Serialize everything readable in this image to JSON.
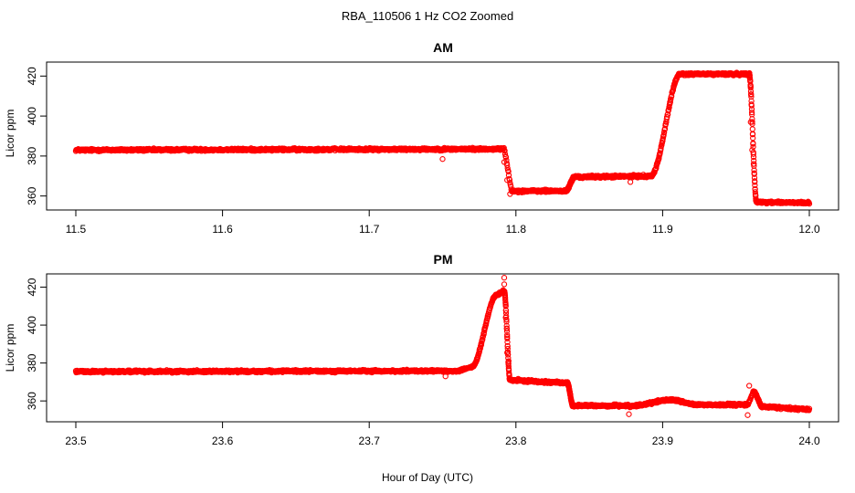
{
  "figure": {
    "title": "RBA_110506  1 Hz CO2 Zoomed",
    "xlabel": "Hour of Day (UTC)"
  },
  "colors": {
    "points": "#ff0000",
    "axes": "#000000",
    "background": "#ffffff"
  },
  "chart_data": [
    {
      "type": "scatter",
      "title": "AM",
      "xlabel": "",
      "ylabel": "Licor ppm",
      "xlim": [
        11.5,
        12.0
      ],
      "ylim": [
        353,
        427
      ],
      "xticks": [
        "11.5",
        "11.6",
        "11.7",
        "11.8",
        "11.9",
        "12.0"
      ],
      "yticks": [
        "360",
        "380",
        "400",
        "420"
      ],
      "grid": false,
      "segments": [
        {
          "x0": 11.5,
          "x1": 11.79,
          "y0": 383.0,
          "y1": 383.5,
          "shape": "linear"
        },
        {
          "x0": 11.79,
          "x1": 11.792,
          "y0": 383.5,
          "y1": 384.0,
          "shape": "linear"
        },
        {
          "x0": 11.792,
          "x1": 11.797,
          "y0": 384.0,
          "y1": 362.5,
          "shape": "linear"
        },
        {
          "x0": 11.797,
          "x1": 11.834,
          "y0": 362.5,
          "y1": 362.5,
          "shape": "linear"
        },
        {
          "x0": 11.834,
          "x1": 11.84,
          "y0": 362.5,
          "y1": 369.5,
          "shape": "sigmoid"
        },
        {
          "x0": 11.84,
          "x1": 11.892,
          "y0": 369.5,
          "y1": 370.0,
          "shape": "linear"
        },
        {
          "x0": 11.892,
          "x1": 11.912,
          "y0": 370.0,
          "y1": 421.0,
          "shape": "sigmoid"
        },
        {
          "x0": 11.912,
          "x1": 11.959,
          "y0": 421.0,
          "y1": 421.0,
          "shape": "linear"
        },
        {
          "x0": 11.959,
          "x1": 11.964,
          "y0": 421.0,
          "y1": 357.0,
          "shape": "sigmoid"
        },
        {
          "x0": 11.964,
          "x1": 12.0,
          "y0": 357.0,
          "y1": 356.5,
          "shape": "linear"
        }
      ],
      "outliers": [
        {
          "x": 11.75,
          "y": 378.5
        },
        {
          "x": 11.878,
          "y": 367.0
        },
        {
          "x": 11.792,
          "y": 377.0
        },
        {
          "x": 11.794,
          "y": 368.0
        },
        {
          "x": 11.796,
          "y": 361.0
        },
        {
          "x": 11.96,
          "y": 397.0
        },
        {
          "x": 11.961,
          "y": 383.0
        },
        {
          "x": 11.962,
          "y": 376.0
        },
        {
          "x": 11.96,
          "y": 415.0
        }
      ]
    },
    {
      "type": "scatter",
      "title": "PM",
      "xlabel": "",
      "ylabel": "Licor ppm",
      "xlim": [
        23.5,
        24.0
      ],
      "ylim": [
        349,
        427
      ],
      "xticks": [
        "23.5",
        "23.6",
        "23.7",
        "23.8",
        "23.9",
        "24.0"
      ],
      "yticks": [
        "360",
        "380",
        "400",
        "420"
      ],
      "grid": false,
      "segments": [
        {
          "x0": 23.5,
          "x1": 23.76,
          "y0": 375.5,
          "y1": 375.8,
          "shape": "linear"
        },
        {
          "x0": 23.76,
          "x1": 23.77,
          "y0": 375.8,
          "y1": 378.0,
          "shape": "linear"
        },
        {
          "x0": 23.77,
          "x1": 23.787,
          "y0": 378.0,
          "y1": 416.0,
          "shape": "sigmoid"
        },
        {
          "x0": 23.787,
          "x1": 23.792,
          "y0": 416.0,
          "y1": 418.0,
          "shape": "linear"
        },
        {
          "x0": 23.792,
          "x1": 23.796,
          "y0": 418.0,
          "y1": 371.0,
          "shape": "sigmoid"
        },
        {
          "x0": 23.796,
          "x1": 23.835,
          "y0": 371.0,
          "y1": 369.5,
          "shape": "linear"
        },
        {
          "x0": 23.835,
          "x1": 23.839,
          "y0": 369.5,
          "y1": 357.5,
          "shape": "sigmoid"
        },
        {
          "x0": 23.839,
          "x1": 23.88,
          "y0": 357.5,
          "y1": 357.5,
          "shape": "linear"
        },
        {
          "x0": 23.88,
          "x1": 23.905,
          "y0": 357.5,
          "y1": 360.5,
          "shape": "sigmoid"
        },
        {
          "x0": 23.905,
          "x1": 23.925,
          "y0": 360.5,
          "y1": 358.0,
          "shape": "sigmoid"
        },
        {
          "x0": 23.925,
          "x1": 23.958,
          "y0": 358.0,
          "y1": 358.0,
          "shape": "linear"
        },
        {
          "x0": 23.958,
          "x1": 23.962,
          "y0": 358.0,
          "y1": 365.0,
          "shape": "linear"
        },
        {
          "x0": 23.962,
          "x1": 23.968,
          "y0": 365.0,
          "y1": 357.0,
          "shape": "sigmoid"
        },
        {
          "x0": 23.968,
          "x1": 24.0,
          "y0": 357.0,
          "y1": 355.5,
          "shape": "linear"
        }
      ],
      "outliers": [
        {
          "x": 23.792,
          "y": 425.0
        },
        {
          "x": 23.792,
          "y": 421.5
        },
        {
          "x": 23.793,
          "y": 404.0
        },
        {
          "x": 23.794,
          "y": 385.5
        },
        {
          "x": 23.795,
          "y": 381.0
        },
        {
          "x": 23.877,
          "y": 353.0
        },
        {
          "x": 23.958,
          "y": 352.5
        },
        {
          "x": 23.959,
          "y": 368.0
        },
        {
          "x": 23.752,
          "y": 373.0
        }
      ]
    }
  ]
}
